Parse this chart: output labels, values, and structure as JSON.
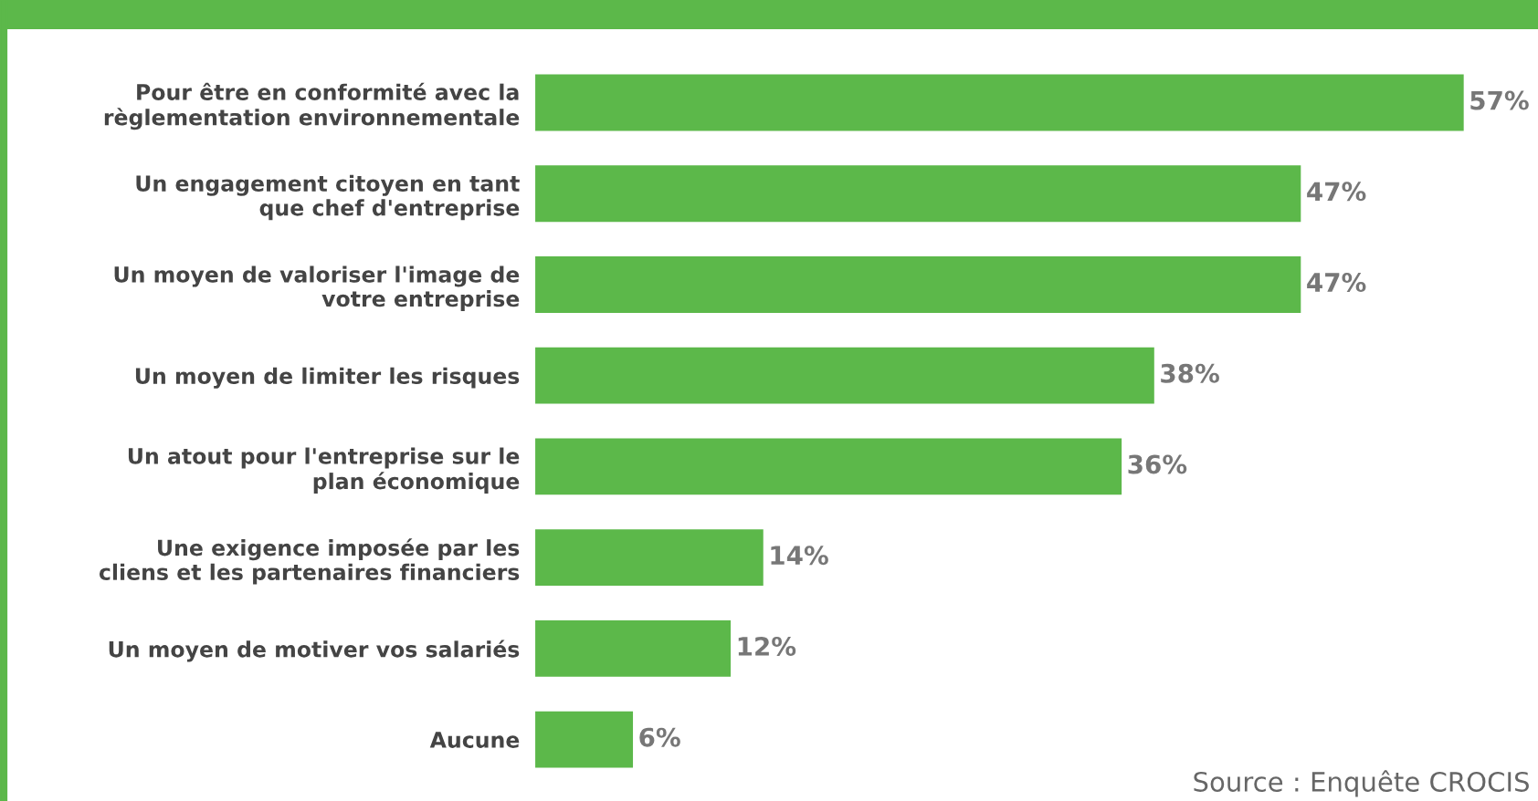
{
  "chart_data": {
    "type": "bar",
    "orientation": "horizontal",
    "categories": [
      "Pour être en conformité avec la\nrèglementation environnementale",
      "Un engagement citoyen en tant\nque chef d'entreprise",
      "Un moyen de valoriser l'image de\nvotre entreprise",
      "Un moyen de limiter les risques",
      "Un atout pour l'entreprise sur le\nplan économique",
      "Une exigence imposée par les\ncliens et les partenaires financiers",
      "Un moyen de motiver vos salariés",
      "Aucune"
    ],
    "values": [
      57,
      47,
      47,
      38,
      36,
      14,
      12,
      6
    ],
    "value_labels": [
      "57%",
      "47%",
      "47%",
      "38%",
      "36%",
      "14%",
      "12%",
      "6%"
    ],
    "color": "#5cb84a",
    "tick_labels": "y",
    "grid": false,
    "legend": false,
    "annotations": [
      "Source : Enquête CROCIS"
    ]
  }
}
